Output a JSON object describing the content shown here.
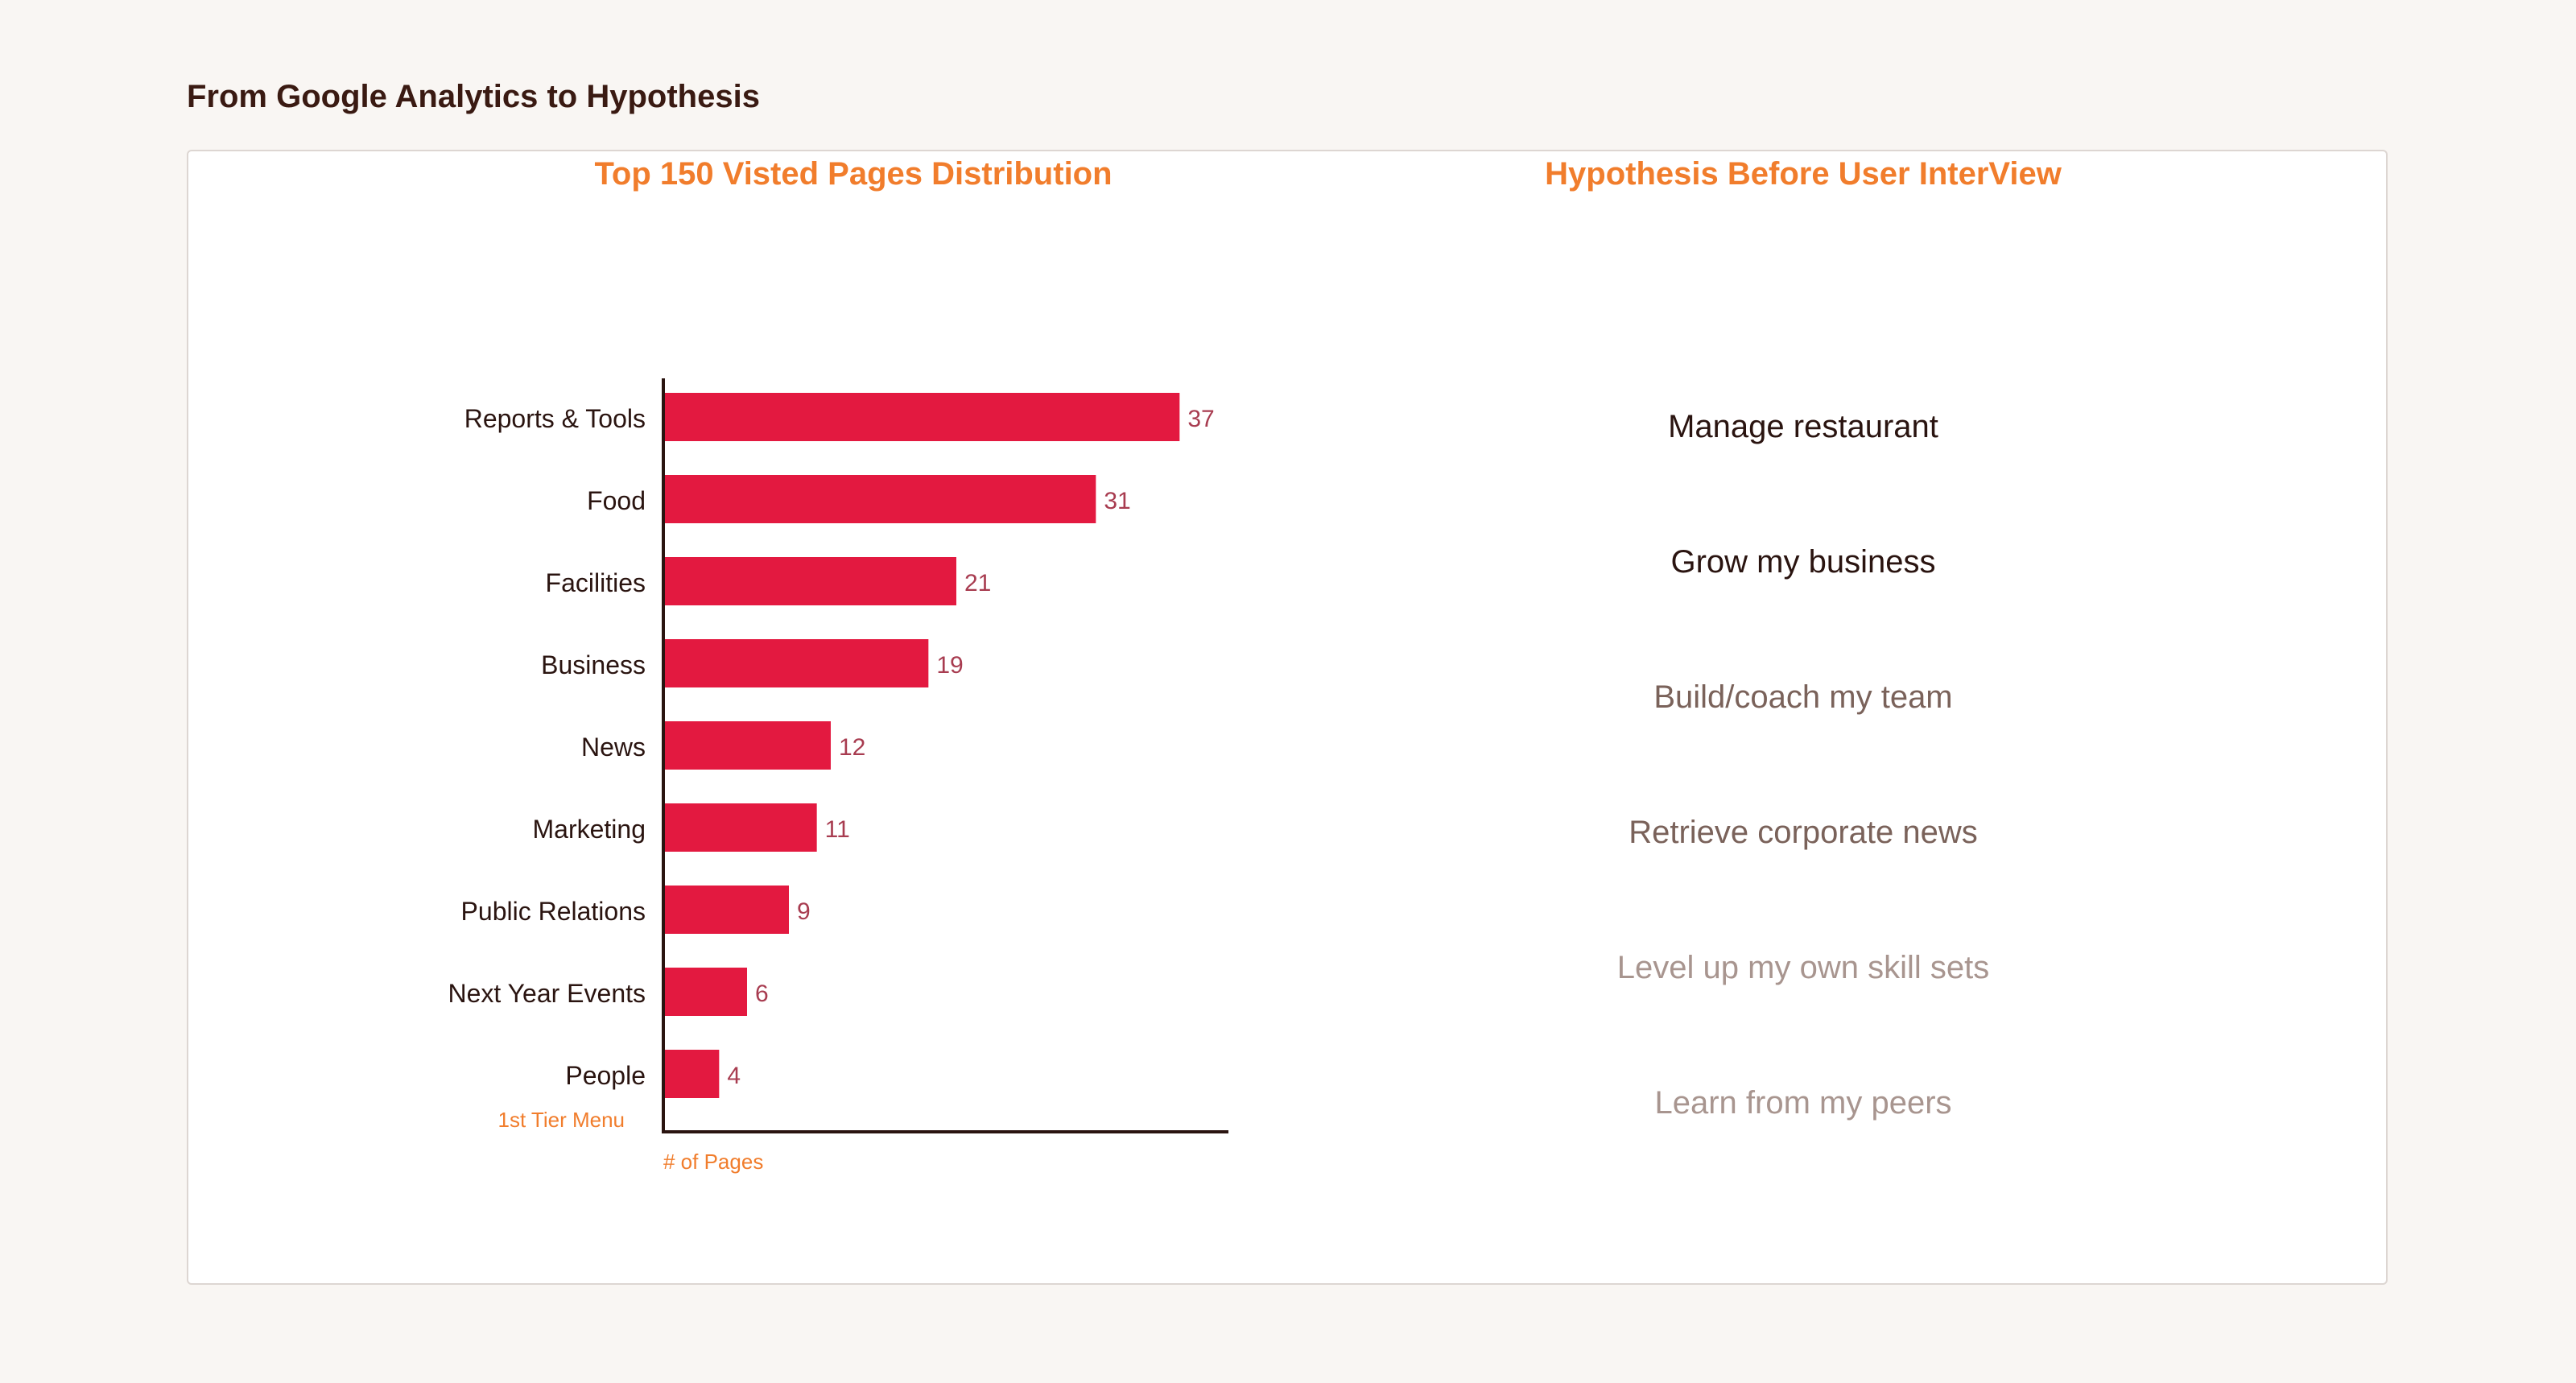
{
  "page": {
    "heading": "From Google Analytics to Hypothesis"
  },
  "chart_data": {
    "type": "bar",
    "orientation": "horizontal",
    "title": "Top 150 Visted Pages Distribution",
    "xlabel": "# of Pages",
    "ylabel": "1st Tier Menu",
    "categories": [
      "Reports & Tools",
      "Food",
      "Facilities",
      "Business",
      "News",
      "Marketing",
      "Public Relations",
      "Next Year Events",
      "People"
    ],
    "values": [
      37,
      31,
      21,
      19,
      12,
      11,
      9,
      6,
      4
    ],
    "xlim": [
      0,
      40.5
    ],
    "grid": false,
    "data_labels": true,
    "colors": {
      "bar": "#e31940",
      "value_label": "#a83c50",
      "axis": "#2a1410",
      "category_label": "#2a1410",
      "axis_label": "#f17d2c"
    }
  },
  "hypothesis": {
    "title": "Hypothesis Before User InterView",
    "items": [
      {
        "text": "Manage restaurant",
        "color": "#2a1410"
      },
      {
        "text": "Grow my business",
        "color": "#2a1410"
      },
      {
        "text": "Build/coach my team",
        "color": "#7a625a"
      },
      {
        "text": "Retrieve corporate news",
        "color": "#7a625a"
      },
      {
        "text": "Level up my own skill sets",
        "color": "#a8958f"
      },
      {
        "text": "Learn from my peers",
        "color": "#a8958f"
      }
    ]
  }
}
